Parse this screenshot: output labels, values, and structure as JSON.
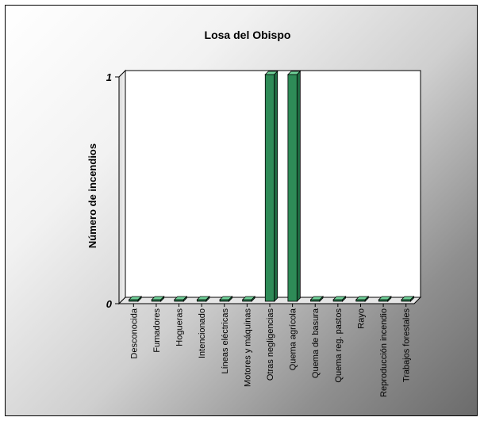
{
  "chart_data": {
    "type": "bar",
    "title": "Losa del Obispo",
    "xlabel": "",
    "ylabel": "Número de incendios",
    "categories": [
      "Desconocida",
      "Fumadores",
      "Hogueras",
      "Intencionado",
      "Líneas eléctricas",
      "Motores y máquinas",
      "Otras negligencias",
      "Quema agrícola",
      "Quema de basura",
      "Quema reg. pastos",
      "Rayo",
      "Reproducción incendio",
      "Trabajos forestales"
    ],
    "values": [
      0,
      0,
      0,
      0,
      0,
      0,
      1,
      1,
      0,
      0,
      0,
      0,
      0
    ],
    "yticks": [
      "0",
      "1"
    ],
    "ylim": [
      0,
      1
    ],
    "grid": false,
    "legend": "none",
    "style": "3d",
    "bar_color": "#2e8b57",
    "background": "gradient white to gray"
  }
}
